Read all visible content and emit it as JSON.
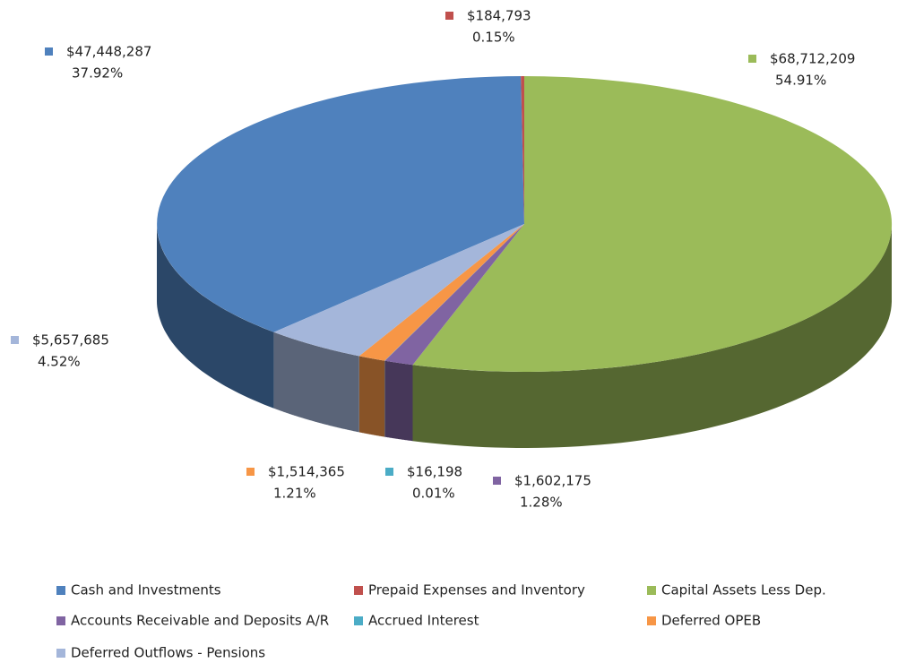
{
  "chart_data": {
    "type": "pie",
    "categories": [
      "Cash and Investments",
      "Prepaid Expenses and Inventory",
      "Capital Assets Less Dep.",
      "Accounts Receivable and Deposits A/R",
      "Accrued Interest",
      "Deferred OPEB",
      "Deferred Outflows - Pensions"
    ],
    "values": [
      47448287,
      184793,
      68712209,
      1602175,
      16198,
      1514365,
      5657685
    ],
    "value_labels": [
      "$47,448,287",
      "$184,793",
      "$68,712,209",
      "$1,602,175",
      "$16,198",
      "$1,514,365",
      "$5,657,685"
    ],
    "percents": [
      37.92,
      0.15,
      54.91,
      1.28,
      0.01,
      1.21,
      4.52
    ],
    "percent_labels": [
      "37.92%",
      "0.15%",
      "54.91%",
      "1.28%",
      "0.01%",
      "1.21%",
      "4.52%"
    ],
    "colors": [
      "#4f81bd",
      "#c0504d",
      "#9bbb59",
      "#8064a2",
      "#4bacc6",
      "#f79646",
      "#a4b6da"
    ],
    "legend": "bottom"
  }
}
